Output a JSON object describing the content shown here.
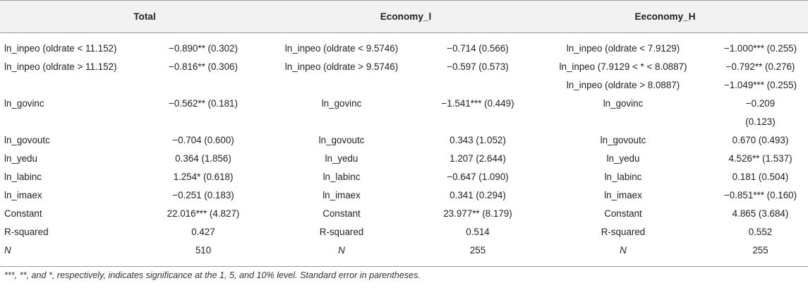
{
  "header": {
    "col_total": "Total",
    "col_economy_l": "Economy_l",
    "col_economy_h": "Eeconomy_H"
  },
  "rows": [
    {
      "c1": "ln_inpeo (oldrate < 11.152)",
      "c2": "−0.890** (0.302)",
      "c3": "ln_inpeo (oldrate < 9.5746)",
      "c4": "−0.714 (0.566)",
      "c5": "ln_inpeo (oldrate < 7.9129)",
      "c6": "−1.000*** (0.255)"
    },
    {
      "c1": "ln_inpeo (oldrate > 11.152)",
      "c2": "−0.816** (0.306)",
      "c3": "ln_inpeo (oldrate > 9.5746)",
      "c4": "−0.597 (0.573)",
      "c5": "ln_inpeo (7.9129 < * < 8.0887)",
      "c6": "−0.792** (0.276)"
    },
    {
      "c1": "",
      "c2": "",
      "c3": "",
      "c4": "",
      "c5": "ln_inpeo (oldrate > 8.0887)",
      "c6": "−1.049*** (0.255)"
    },
    {
      "c1": "ln_govinc",
      "c2": "−0.562** (0.181)",
      "c3": "ln_govinc",
      "c4": "−1.541*** (0.449)",
      "c5": "ln_govinc",
      "c6": "−0.209"
    },
    {
      "c1": "",
      "c2": "",
      "c3": "",
      "c4": "",
      "c5": "",
      "c6": "(0.123)"
    },
    {
      "c1": "ln_govoutc",
      "c2": "−0.704 (0.600)",
      "c3": "ln_govoutc",
      "c4": "0.343 (1.052)",
      "c5": "ln_govoutc",
      "c6": "0.670 (0.493)"
    },
    {
      "c1": "ln_yedu",
      "c2": "0.364 (1.856)",
      "c3": "ln_yedu",
      "c4": "1.207 (2.644)",
      "c5": "ln_yedu",
      "c6": "4.526** (1.537)"
    },
    {
      "c1": "ln_labinc",
      "c2": "1.254* (0.618)",
      "c3": "ln_labinc",
      "c4": "−0.647 (1.090)",
      "c5": "ln_labinc",
      "c6": "0.181 (0.504)"
    },
    {
      "c1": "ln_imaex",
      "c2": "−0.251 (0.183)",
      "c3": "ln_imaex",
      "c4": "0.341 (0.294)",
      "c5": "ln_imaex",
      "c6": "−0.851*** (0.160)"
    },
    {
      "c1": "Constant",
      "c2": "22.016*** (4.827)",
      "c3": "Constant",
      "c4": "23.977** (8.179)",
      "c5": "Constant",
      "c6": "4.865 (3.684)"
    },
    {
      "c1": "R-squared",
      "c2": "0.427",
      "c3": "R-squared",
      "c4": "0.514",
      "c5": "R-squared",
      "c6": "0.552"
    },
    {
      "c1": "N",
      "c2": "510",
      "c3": "N",
      "c4": "255",
      "c5": "N",
      "c6": "255"
    }
  ],
  "footnote": "***, **, and *, respectively, indicates significance at the 1, 5, and 10% level. Standard error in parentheses."
}
